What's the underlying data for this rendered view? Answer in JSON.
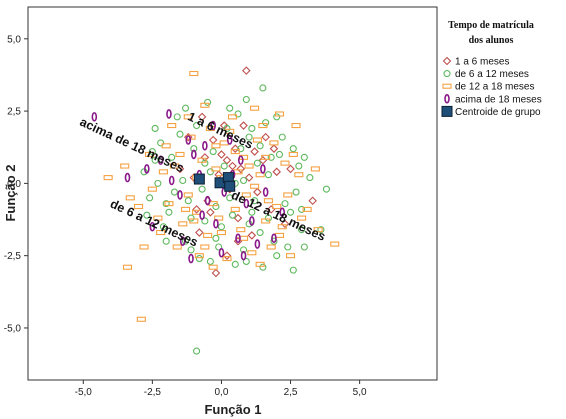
{
  "chart_data": {
    "type": "scatter",
    "xlabel": "Função 1",
    "ylabel": "Função 2",
    "xlim": [
      -7.0,
      7.8
    ],
    "ylim": [
      -6.8,
      6.1
    ],
    "xticks": [
      "-5,0",
      "-2,5",
      "0,0",
      "2,5",
      "5,0"
    ],
    "yticks": [
      "5,0",
      "2,5",
      "0,0",
      "-2,5",
      "-5,0"
    ],
    "xtick_values": [
      -5,
      -2.5,
      0,
      2.5,
      5
    ],
    "ytick_values": [
      5,
      2.5,
      0,
      -2.5,
      -5
    ],
    "legend": {
      "title": [
        "Tempo de matrícula",
        "dos alunos"
      ],
      "placement": "right",
      "entries": [
        {
          "label": "1 a 6 meses",
          "marker": "diamond",
          "color": "#c0504d"
        },
        {
          "label": "de 6 a 12 meses",
          "marker": "circle",
          "color": "#5cb85c"
        },
        {
          "label": "de 12 a 18 meses",
          "marker": "rect",
          "color": "#f5a142"
        },
        {
          "label": "acima de 18 meses",
          "marker": "ellipse",
          "color": "#8a1a8a"
        },
        {
          "label": "Centroide de grupo",
          "marker": "square-filled",
          "color": "#1f4e79"
        }
      ]
    },
    "series": [
      {
        "name": "1 a 6 meses",
        "marker": "diamond",
        "color": "#c0504d",
        "points": [
          [
            0.1,
            2.0
          ],
          [
            0.9,
            3.9
          ],
          [
            -0.2,
            -3.1
          ],
          [
            -1.2,
            1.6
          ],
          [
            0.5,
            1.2
          ],
          [
            -0.6,
            0.9
          ],
          [
            0.7,
            0.5
          ],
          [
            1.2,
            1.1
          ],
          [
            -0.1,
            0.3
          ],
          [
            0.3,
            -0.2
          ],
          [
            1.5,
            0.8
          ],
          [
            2.0,
            0.4
          ],
          [
            2.5,
            0.5
          ],
          [
            3.3,
            -0.6
          ],
          [
            -0.5,
            -0.6
          ],
          [
            0.6,
            -1.2
          ],
          [
            1.1,
            -1.8
          ],
          [
            -0.8,
            -1.7
          ],
          [
            -1.0,
            0.2
          ],
          [
            1.8,
            -0.9
          ],
          [
            0.2,
            -2.5
          ],
          [
            -0.3,
            1.5
          ],
          [
            1.3,
            -0.3
          ],
          [
            0.0,
            1.0
          ],
          [
            -0.9,
            -0.9
          ],
          [
            2.3,
            -1.4
          ],
          [
            0.8,
            2.0
          ],
          [
            -1.5,
            0.5
          ],
          [
            0.4,
            0.6
          ],
          [
            1.6,
            1.6
          ],
          [
            -0.4,
            -1.0
          ],
          [
            1.0,
            0.2
          ],
          [
            0.6,
            -2.0
          ],
          [
            1.9,
            1.2
          ],
          [
            -0.7,
            2.3
          ],
          [
            0.2,
            0.8
          ]
        ]
      },
      {
        "name": "de 6 a 12 meses",
        "marker": "circle",
        "color": "#5cb85c",
        "points": [
          [
            -0.9,
            -5.8
          ],
          [
            1.5,
            3.3
          ],
          [
            3.8,
            -0.2
          ],
          [
            2.0,
            -2.5
          ],
          [
            -2.5,
            1.1
          ],
          [
            -2.7,
            -1.1
          ],
          [
            -2.4,
            1.9
          ],
          [
            2.9,
            -1.6
          ],
          [
            -1.1,
            -1.2
          ],
          [
            0.3,
            2.6
          ],
          [
            -2.0,
            -0.7
          ],
          [
            2.6,
            -3.0
          ],
          [
            3.0,
            -2.2
          ],
          [
            -0.5,
            2.8
          ],
          [
            -1.6,
            2.3
          ],
          [
            1.1,
            -1.0
          ],
          [
            2.3,
            -0.7
          ],
          [
            -2.3,
            0.0
          ],
          [
            1.0,
            1.6
          ],
          [
            -1.3,
            -2.0
          ],
          [
            0.8,
            -2.3
          ],
          [
            -0.6,
            -1.3
          ],
          [
            1.7,
            0.3
          ],
          [
            2.1,
            1.0
          ],
          [
            -1.8,
            0.9
          ],
          [
            0.5,
            0.0
          ],
          [
            -0.2,
            -0.8
          ],
          [
            1.4,
            -1.7
          ],
          [
            -1.0,
            1.2
          ],
          [
            0.0,
            -1.5
          ],
          [
            2.5,
            -1.0
          ],
          [
            -2.1,
            -1.5
          ],
          [
            1.9,
            -2.0
          ],
          [
            0.7,
            1.2
          ],
          [
            -0.4,
            0.4
          ],
          [
            1.2,
            -0.6
          ],
          [
            -1.4,
            0.1
          ],
          [
            0.2,
            1.9
          ],
          [
            2.8,
            0.6
          ],
          [
            -2.8,
            0.4
          ],
          [
            0.9,
            -2.7
          ],
          [
            -0.8,
            -2.6
          ],
          [
            1.6,
            2.1
          ],
          [
            -1.7,
            -0.3
          ],
          [
            3.2,
            0.2
          ],
          [
            0.4,
            -1.1
          ],
          [
            -0.3,
            1.1
          ],
          [
            1.3,
            0.7
          ],
          [
            -1.2,
            -0.6
          ],
          [
            2.2,
            1.6
          ],
          [
            -0.1,
            -2.2
          ],
          [
            0.6,
            2.4
          ],
          [
            2.7,
            -0.3
          ],
          [
            -2.2,
            1.4
          ],
          [
            1.0,
            -1.4
          ],
          [
            -0.6,
            0.7
          ],
          [
            1.8,
            0.9
          ],
          [
            -1.9,
            -1.0
          ],
          [
            0.3,
            -0.5
          ],
          [
            2.4,
            -2.2
          ],
          [
            -0.9,
            2.0
          ],
          [
            3.6,
            -1.6
          ],
          [
            1.5,
            -2.9
          ],
          [
            -2.6,
            -0.5
          ],
          [
            0.1,
            0.6
          ],
          [
            -1.5,
            1.7
          ],
          [
            2.0,
            2.3
          ],
          [
            -0.2,
            -1.9
          ],
          [
            1.1,
            1.9
          ],
          [
            -1.1,
            -2.3
          ],
          [
            2.6,
            1.2
          ],
          [
            0.8,
            0.1
          ],
          [
            -0.7,
            -0.2
          ],
          [
            1.7,
            -1.2
          ],
          [
            -2.4,
            0.8
          ],
          [
            0.5,
            -2.8
          ],
          [
            -1.3,
            2.6
          ],
          [
            2.9,
            -0.9
          ],
          [
            1.4,
            1.3
          ],
          [
            -0.4,
            -2.7
          ],
          [
            3.0,
            0.9
          ],
          [
            -2.0,
            -2.0
          ],
          [
            0.9,
            2.9
          ]
        ]
      },
      {
        "name": "de 12 a 18 meses",
        "marker": "rect",
        "color": "#f5a142",
        "points": [
          [
            -1.0,
            3.8
          ],
          [
            -2.9,
            -4.7
          ],
          [
            -3.4,
            -2.9
          ],
          [
            -4.1,
            0.2
          ],
          [
            4.1,
            -2.1
          ],
          [
            3.5,
            -1.6
          ],
          [
            -3.3,
            -0.5
          ],
          [
            -3.0,
            -0.8
          ],
          [
            -2.2,
            -1.7
          ],
          [
            1.6,
            -1.3
          ],
          [
            2.1,
            2.4
          ],
          [
            -1.2,
            -0.4
          ],
          [
            0.8,
            0.9
          ],
          [
            -0.9,
            -1.0
          ],
          [
            1.4,
            0.3
          ],
          [
            -0.2,
            1.3
          ],
          [
            0.5,
            -0.9
          ],
          [
            -1.7,
            0.6
          ],
          [
            2.4,
            -0.4
          ],
          [
            -0.6,
            -2.2
          ],
          [
            1.1,
            -2.4
          ],
          [
            0.0,
            0.2
          ],
          [
            -2.0,
            1.3
          ],
          [
            1.9,
            1.4
          ],
          [
            -1.4,
            -1.4
          ],
          [
            0.3,
            1.8
          ],
          [
            2.8,
            0.3
          ],
          [
            -0.7,
            0.8
          ],
          [
            1.2,
            -0.1
          ],
          [
            -2.5,
            -0.2
          ],
          [
            0.7,
            -1.6
          ],
          [
            -0.3,
            -0.7
          ],
          [
            1.6,
            0.9
          ],
          [
            -1.8,
            2.0
          ],
          [
            0.4,
            2.3
          ],
          [
            2.2,
            -1.5
          ],
          [
            -1.1,
            1.6
          ],
          [
            0.9,
            -0.4
          ],
          [
            -0.5,
            -1.8
          ],
          [
            3.1,
            -0.9
          ],
          [
            -2.3,
            -1.2
          ],
          [
            0.2,
            -2.6
          ],
          [
            1.5,
            2.0
          ],
          [
            -0.9,
            0.2
          ],
          [
            2.6,
            1.0
          ],
          [
            -1.6,
            -2.2
          ],
          [
            0.6,
            0.4
          ],
          [
            -0.1,
            -1.2
          ],
          [
            1.8,
            -2.2
          ],
          [
            -2.6,
            1.0
          ],
          [
            0.1,
            1.4
          ],
          [
            2.0,
            -0.8
          ],
          [
            -1.3,
            -0.9
          ],
          [
            0.8,
            -1.9
          ],
          [
            -0.4,
            1.9
          ],
          [
            1.3,
            1.5
          ],
          [
            -2.1,
            0.4
          ],
          [
            2.5,
            -2.5
          ],
          [
            -0.8,
            -2.5
          ],
          [
            1.0,
            0.6
          ],
          [
            -1.5,
            1.0
          ],
          [
            0.3,
            -0.1
          ],
          [
            2.3,
            0.7
          ],
          [
            -1.9,
            -0.7
          ],
          [
            -0.6,
            2.7
          ],
          [
            1.7,
            -0.6
          ],
          [
            -0.2,
            0.5
          ],
          [
            0.5,
            1.1
          ],
          [
            -1.0,
            -1.3
          ],
          [
            2.9,
            -1.2
          ],
          [
            -2.8,
            -2.2
          ],
          [
            1.2,
            2.6
          ],
          [
            -0.3,
            -2.9
          ],
          [
            2.7,
            2.0
          ],
          [
            3.4,
            0.5
          ],
          [
            -3.5,
            0.6
          ],
          [
            0.0,
            -1.7
          ],
          [
            1.4,
            -2.8
          ],
          [
            -1.2,
            2.3
          ],
          [
            2.1,
            -1.8
          ]
        ]
      },
      {
        "name": "acima de 18 meses",
        "marker": "ellipse",
        "color": "#8a1a8a",
        "points": [
          [
            -4.6,
            2.3
          ],
          [
            -3.4,
            0.2
          ],
          [
            -1.2,
            1.5
          ],
          [
            0.6,
            -1.9
          ],
          [
            1.3,
            -2.1
          ],
          [
            -1.9,
            2.4
          ],
          [
            -0.8,
            0.3
          ],
          [
            -0.5,
            -0.6
          ],
          [
            0.4,
            0.3
          ],
          [
            -1.5,
            -0.4
          ],
          [
            0.9,
            -0.7
          ],
          [
            -2.2,
            0.8
          ],
          [
            1.6,
            -0.3
          ],
          [
            -0.2,
            -1.4
          ],
          [
            -1.0,
            1.0
          ],
          [
            0.1,
            -0.3
          ],
          [
            -2.5,
            -1.5
          ],
          [
            1.9,
            -1.9
          ],
          [
            0.3,
            1.5
          ],
          [
            -0.7,
            -1.1
          ],
          [
            -1.8,
            0.1
          ],
          [
            0.7,
            0.8
          ],
          [
            -0.3,
            2.0
          ],
          [
            1.1,
            -1.3
          ],
          [
            -1.4,
            -2.0
          ],
          [
            0.0,
            -2.4
          ],
          [
            2.2,
            -1.0
          ],
          [
            -2.7,
            0.5
          ],
          [
            -0.6,
            1.3
          ],
          [
            0.8,
            -2.5
          ],
          [
            -1.1,
            -2.6
          ],
          [
            1.5,
            0.5
          ]
        ]
      },
      {
        "name": "Centroide de grupo",
        "marker": "square-filled",
        "color": "#1f4e79",
        "points": [
          [
            -0.8,
            0.15
          ],
          [
            -0.05,
            0.02
          ],
          [
            0.25,
            0.2
          ],
          [
            0.3,
            -0.1
          ]
        ]
      }
    ],
    "centroid_labels": [
      {
        "text": "1 a 6 meses",
        "x": -0.1,
        "y": 1.7
      },
      {
        "text": "acima de 18 meses",
        "x": -3.3,
        "y": 1.2
      },
      {
        "text": "de 6 a 12 meses",
        "x": -2.5,
        "y": -1.5
      },
      {
        "text": "de 12 a 18 meses",
        "x": 2.0,
        "y": -1.25
      }
    ]
  }
}
